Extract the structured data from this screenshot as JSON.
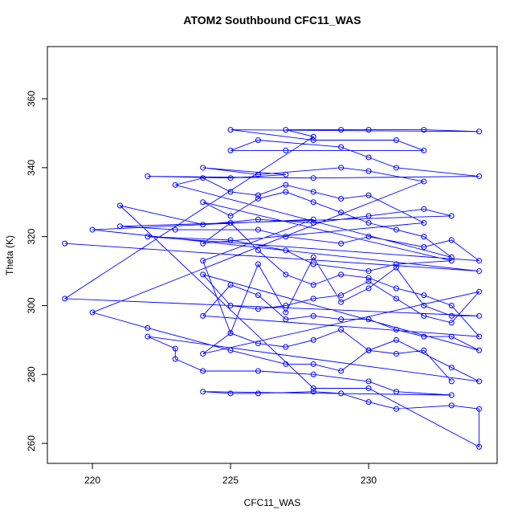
{
  "chart_data": {
    "type": "line",
    "title": "ATOM2 Southbound CFC11_WAS",
    "x_label": "CFC11_WAS",
    "y_label": "Theta (K)",
    "xlim": [
      218.37,
      234.65
    ],
    "ylim": [
      254.2,
      375.15
    ],
    "xticks": [
      220,
      225,
      230
    ],
    "yticks": [
      260,
      280,
      300,
      320,
      340,
      360
    ],
    "grid": false,
    "markers": true,
    "x": [
      219,
      234,
      220,
      228,
      224,
      225,
      226,
      227,
      228,
      229,
      230,
      231,
      232,
      233,
      234,
      219,
      228,
      227,
      229,
      230,
      232,
      234,
      225,
      228,
      231,
      232,
      227,
      225,
      226,
      229,
      230,
      231,
      234,
      228,
      222,
      225,
      227,
      224,
      226,
      229,
      230,
      232,
      220,
      222,
      225,
      227,
      228,
      229,
      230,
      231,
      233,
      234,
      222,
      223,
      223,
      224,
      226,
      228,
      230,
      231,
      233,
      224,
      225,
      226,
      228,
      229,
      230,
      231,
      233,
      234,
      234,
      230,
      228,
      221,
      224,
      226,
      228,
      230,
      232,
      233,
      221,
      223,
      226,
      227,
      229,
      230,
      232,
      233,
      234,
      222,
      225,
      227,
      228,
      230,
      231,
      233,
      224,
      225,
      226,
      227,
      228,
      229,
      230,
      231,
      232,
      233,
      223,
      224,
      225,
      226,
      227,
      228,
      229,
      230,
      232,
      224,
      225,
      226,
      227,
      228,
      229,
      230,
      231,
      232,
      233,
      234,
      224,
      225,
      226,
      227,
      228,
      229,
      230,
      231,
      232,
      233,
      234,
      224,
      225,
      226,
      227,
      228,
      229,
      230,
      231,
      232,
      233,
      234,
      224,
      225,
      226,
      227,
      228,
      229,
      230,
      231,
      232,
      233
    ],
    "series": [
      {
        "name": "Theta",
        "color": "#0000ff",
        "values": [
          318,
          310,
          322,
          325,
          313,
          292,
          312,
          298,
          314,
          301,
          305,
          311,
          300,
          297,
          297,
          302,
          349,
          351,
          351,
          351,
          351,
          350.5,
          351,
          348,
          348,
          345,
          345,
          345,
          348,
          346,
          343,
          340,
          337.5,
          337,
          337.5,
          337,
          338,
          340,
          338,
          340,
          339,
          336,
          298,
          293.5,
          287,
          283,
          283,
          281,
          287,
          290,
          282,
          278,
          291,
          287.5,
          284.5,
          281,
          281,
          280,
          278,
          275,
          274,
          275,
          274.5,
          274.5,
          275,
          274.5,
          272,
          270,
          271,
          270,
          259,
          276,
          276,
          329,
          323.5,
          325,
          324,
          326,
          328,
          326,
          323,
          322,
          322,
          320,
          318,
          320,
          317,
          319,
          313,
          320,
          319,
          316,
          312,
          310,
          312,
          313,
          330,
          326,
          331,
          333,
          330,
          327,
          324,
          322,
          320,
          314,
          335,
          337,
          333,
          332,
          335,
          333,
          331,
          332,
          324,
          318,
          324,
          316,
          309,
          306,
          309,
          308,
          305,
          303,
          300,
          291,
          297,
          306,
          303,
          296,
          297,
          296,
          296,
          293,
          291,
          291,
          287,
          309,
          300,
          299,
          300,
          302,
          303,
          307,
          302,
          297,
          295,
          304,
          286,
          292,
          289,
          288,
          290,
          293,
          287,
          286,
          287,
          278
        ]
      }
    ]
  }
}
